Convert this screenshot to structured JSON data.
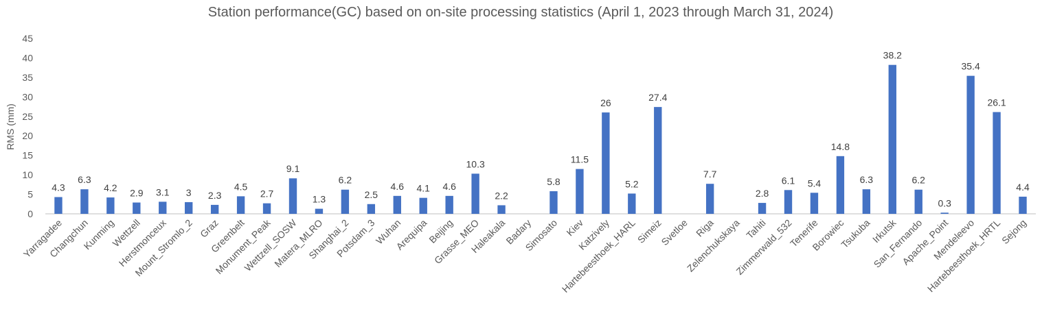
{
  "chart_data": {
    "type": "bar",
    "title": "Station performance(GC) based on on-site processing statistics (April 1, 2023 through March 31, 2024)",
    "xlabel": "",
    "ylabel": "RMS (mm)",
    "ylim": [
      0,
      45
    ],
    "yticks": [
      0,
      5,
      10,
      15,
      20,
      25,
      30,
      35,
      40,
      45
    ],
    "grid": false,
    "legend": "none",
    "bar_color": "#4472c4",
    "categories": [
      "Yarragadee",
      "Changchun",
      "Kunming",
      "Wettzell",
      "Herstmonceux",
      "Mount_Stromlo_2",
      "Graz",
      "Greenbelt",
      "Monument_Peak",
      "Wettzell_SOSW",
      "Matera_MLRO",
      "Shanghai_2",
      "Potsdam_3",
      "Wuhan",
      "Arequipa",
      "Beijing",
      "Grasse_MEO",
      "Haleakala",
      "Badary",
      "Simosato",
      "Kiev",
      "Katzively",
      "Hartebeesthoek_HARL",
      "Simeiz",
      "Svetloe",
      "Riga",
      "Zelenchukskaya",
      "Tahiti",
      "Zimmerwald_532",
      "Tenerife",
      "Borowiec",
      "Tsukuba",
      "Irkutsk",
      "San_Fernando",
      "Apache_Point",
      "Mendeleevo",
      "Hartebeesthoek_HRTL",
      "Sejong"
    ],
    "values": [
      4.3,
      6.3,
      4.2,
      2.9,
      3.1,
      3,
      2.3,
      4.5,
      2.7,
      9.1,
      1.3,
      6.2,
      2.5,
      4.6,
      4.1,
      4.6,
      10.3,
      2.2,
      null,
      5.8,
      11.5,
      26,
      5.2,
      27.4,
      null,
      7.7,
      null,
      2.8,
      6.1,
      5.4,
      14.8,
      6.3,
      38.2,
      6.2,
      0.3,
      35.4,
      26.1,
      4.4
    ]
  }
}
